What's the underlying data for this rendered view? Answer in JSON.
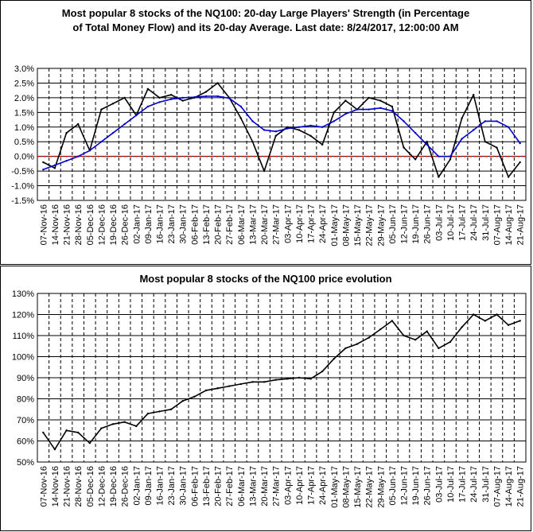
{
  "chart_data": [
    {
      "type": "line",
      "title_line1": "Most popular 8 stocks of the NQ100: 20-day Large Players' Strength (in Percentage",
      "title_line2": "of Total Money Flow) and its 20-day Average. Last date: 8/24/2017, 12:00:00 AM",
      "xlabel": "",
      "ylabel": "",
      "ylim": [
        -1.5,
        3.0
      ],
      "yticks": [
        "3.0%",
        "2.5%",
        "2.0%",
        "1.5%",
        "1.0%",
        "0.5%",
        "0.0%",
        "-0.5%",
        "-1.0%",
        "-1.5%"
      ],
      "x": [
        "07-Nov-16",
        "14-Nov-16",
        "21-Nov-16",
        "28-Nov-16",
        "05-Dec-16",
        "12-Dec-16",
        "19-Dec-16",
        "26-Dec-16",
        "02-Jan-17",
        "09-Jan-17",
        "16-Jan-17",
        "23-Jan-17",
        "30-Jan-17",
        "06-Feb-17",
        "13-Feb-17",
        "20-Feb-17",
        "27-Feb-17",
        "06-Mar-17",
        "13-Mar-17",
        "20-Mar-17",
        "27-Mar-17",
        "03-Apr-17",
        "10-Apr-17",
        "17-Apr-17",
        "24-Apr-17",
        "01-May-17",
        "08-May-17",
        "15-May-17",
        "22-May-17",
        "29-May-17",
        "05-Jun-17",
        "12-Jun-17",
        "19-Jun-17",
        "26-Jun-17",
        "03-Jul-17",
        "10-Jul-17",
        "17-Jul-17",
        "24-Jul-17",
        "31-Jul-17",
        "07-Aug-17",
        "14-Aug-17",
        "21-Aug-17"
      ],
      "grid": true,
      "reference_line": 0.0,
      "colors": {
        "strength": "#000000",
        "average": "#0000cc",
        "zero_line": "#ff0000",
        "grid": "#000000"
      },
      "series": [
        {
          "values": [
            -0.2,
            -0.4,
            0.8,
            1.1,
            0.2,
            1.6,
            1.8,
            2.0,
            1.4,
            2.3,
            2.0,
            2.1,
            1.9,
            2.0,
            2.2,
            2.5,
            2.0,
            1.3,
            0.5,
            -0.5,
            0.7,
            1.0,
            0.9,
            0.7,
            0.4,
            1.5,
            1.9,
            1.6,
            2.0,
            1.9,
            1.7,
            0.3,
            -0.1,
            0.5,
            -0.7,
            -0.1,
            1.3,
            2.1,
            0.5,
            0.3,
            -0.7,
            -0.2
          ]
        },
        {
          "values": [
            -0.45,
            -0.3,
            -0.15,
            0.0,
            0.2,
            0.5,
            0.8,
            1.1,
            1.4,
            1.7,
            1.85,
            1.95,
            2.0,
            2.02,
            2.05,
            2.05,
            1.98,
            1.7,
            1.2,
            0.9,
            0.85,
            0.95,
            1.0,
            1.05,
            1.0,
            1.2,
            1.45,
            1.6,
            1.6,
            1.65,
            1.55,
            1.2,
            0.8,
            0.4,
            0.0,
            0.0,
            0.6,
            0.9,
            1.2,
            1.2,
            1.0,
            0.45
          ]
        }
      ]
    },
    {
      "type": "line",
      "title": "Most popular 8 stocks of the NQ100 price evolution",
      "xlabel": "",
      "ylabel": "",
      "ylim": [
        50,
        130
      ],
      "yticks": [
        "130%",
        "120%",
        "110%",
        "100%",
        "90%",
        "80%",
        "70%",
        "60%",
        "50%"
      ],
      "x": [
        "07-Nov-16",
        "14-Nov-16",
        "21-Nov-16",
        "28-Nov-16",
        "05-Dec-16",
        "12-Dec-16",
        "19-Dec-16",
        "26-Dec-16",
        "02-Jan-17",
        "09-Jan-17",
        "16-Jan-17",
        "23-Jan-17",
        "30-Jan-17",
        "06-Feb-17",
        "13-Feb-17",
        "20-Feb-17",
        "27-Feb-17",
        "06-Mar-17",
        "13-Mar-17",
        "20-Mar-17",
        "27-Mar-17",
        "03-Apr-17",
        "10-Apr-17",
        "17-Apr-17",
        "24-Apr-17",
        "01-May-17",
        "08-May-17",
        "15-May-17",
        "22-May-17",
        "29-May-17",
        "05-Jun-17",
        "12-Jun-17",
        "19-Jun-17",
        "26-Jun-17",
        "03-Jul-17",
        "10-Jul-17",
        "17-Jul-17",
        "24-Jul-17",
        "31-Jul-17",
        "07-Aug-17",
        "14-Aug-17",
        "21-Aug-17"
      ],
      "grid": true,
      "colors": {
        "price": "#000000",
        "grid": "#000000"
      },
      "series": [
        {
          "values": [
            64,
            56,
            65,
            64,
            59,
            66,
            68,
            69,
            67,
            73,
            74,
            75,
            79,
            81,
            84,
            85,
            86,
            87,
            88,
            88,
            89,
            89.5,
            90,
            89.5,
            93,
            99,
            104,
            106,
            109,
            113,
            117,
            110,
            108,
            112,
            104,
            107,
            114,
            120,
            117,
            120,
            115,
            117
          ]
        }
      ]
    }
  ]
}
